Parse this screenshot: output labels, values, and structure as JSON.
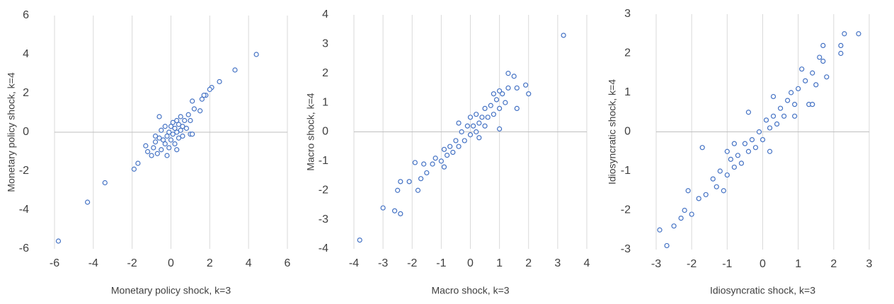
{
  "chart_data": [
    {
      "type": "scatter",
      "color": "#4472c4",
      "grid": "x",
      "xlabel": "Monetary policy shock, k=3",
      "ylabel": "Monetary policy shock, k=4",
      "xlim": [
        -6,
        6
      ],
      "ylim": [
        -6,
        6
      ],
      "xticks": [
        -6,
        -4,
        -2,
        0,
        2,
        4,
        6
      ],
      "yticks": [
        -6,
        -4,
        -2,
        0,
        2,
        4,
        6
      ],
      "x": [
        4.4,
        3.3,
        2.5,
        2.1,
        2.0,
        1.8,
        1.7,
        1.6,
        1.1,
        1.5,
        -5.8,
        -4.3,
        -3.4,
        -1.9,
        -1.7,
        1.0,
        1.1,
        -1.2,
        -1.0,
        -0.9,
        -0.8,
        -0.7,
        -0.6,
        -0.5,
        -0.5,
        -0.4,
        -0.3,
        -0.3,
        -0.2,
        -0.1,
        -0.1,
        0.0,
        0.0,
        0.1,
        0.1,
        0.2,
        0.2,
        0.3,
        0.3,
        0.4,
        0.4,
        0.5,
        0.5,
        0.6,
        0.7,
        0.8,
        0.9,
        1.0,
        -0.6,
        -1.3,
        0.6,
        -0.8,
        1.2,
        -0.2,
        0.3
      ],
      "values": [
        4.0,
        3.2,
        2.6,
        2.3,
        2.2,
        1.9,
        1.9,
        1.7,
        1.6,
        1.1,
        -5.6,
        -3.6,
        -2.6,
        -1.9,
        -1.6,
        -0.1,
        -0.1,
        -1.0,
        -1.2,
        -0.8,
        -0.5,
        -1.1,
        -0.3,
        -0.9,
        0.1,
        -0.4,
        -0.6,
        0.3,
        -0.2,
        -0.8,
        0.0,
        -0.4,
        0.3,
        -0.1,
        0.5,
        -0.6,
        0.2,
        0.0,
        0.6,
        -0.3,
        0.4,
        0.1,
        0.8,
        0.3,
        0.6,
        0.2,
        0.9,
        0.6,
        0.8,
        -0.7,
        -0.2,
        -0.2,
        1.2,
        -1.2,
        -0.9
      ]
    },
    {
      "type": "scatter",
      "color": "#4472c4",
      "grid": "x",
      "xlabel": "Macro shock, k=3",
      "ylabel": "Macro shock, k=4",
      "xlim": [
        -4,
        4
      ],
      "ylim": [
        -4,
        4
      ],
      "xticks": [
        -4,
        -3,
        -2,
        -1,
        0,
        1,
        2,
        3,
        4
      ],
      "yticks": [
        -4,
        -3,
        -2,
        -1,
        0,
        1,
        2,
        3,
        4
      ],
      "x": [
        3.2,
        -3.8,
        -3.0,
        -2.6,
        -2.4,
        -2.5,
        -2.4,
        -2.1,
        -1.9,
        -1.8,
        1.3,
        1.5,
        1.6,
        1.9,
        2.0,
        1.6,
        1.0,
        -1.7,
        -1.5,
        -1.3,
        -1.2,
        -1.0,
        -0.9,
        -0.8,
        -0.7,
        -0.6,
        -0.5,
        -0.4,
        -0.3,
        -0.2,
        -0.1,
        0.0,
        0.0,
        0.1,
        0.2,
        0.2,
        0.3,
        0.4,
        0.5,
        0.5,
        0.6,
        0.7,
        0.8,
        0.9,
        1.0,
        1.1,
        1.2,
        1.3,
        0.8,
        -0.9,
        -1.6,
        0.3,
        -0.4,
        1.0
      ],
      "values": [
        3.3,
        -3.7,
        -2.6,
        -2.7,
        -2.8,
        -2.0,
        -1.7,
        -1.7,
        -1.05,
        -2.0,
        2.0,
        1.9,
        1.5,
        1.6,
        1.3,
        0.8,
        0.1,
        -1.6,
        -1.4,
        -1.1,
        -0.9,
        -1.0,
        -0.6,
        -0.8,
        -0.5,
        -0.7,
        -0.3,
        -0.5,
        0.0,
        -0.3,
        0.2,
        -0.1,
        0.5,
        0.2,
        0.0,
        0.6,
        0.3,
        0.5,
        0.2,
        0.8,
        0.5,
        0.9,
        0.6,
        1.1,
        0.8,
        1.3,
        1.0,
        1.5,
        1.3,
        -1.2,
        -1.1,
        -0.2,
        0.3,
        1.4
      ]
    },
    {
      "type": "scatter",
      "color": "#4472c4",
      "grid": "x",
      "xlabel": "Idiosyncratic shock, k=3",
      "ylabel": "Idiosyncratic shock, k=4",
      "xlim": [
        -3,
        3
      ],
      "ylim": [
        -3,
        3
      ],
      "xticks": [
        -3,
        -2,
        -1,
        0,
        1,
        2,
        3
      ],
      "yticks": [
        -3,
        -2,
        -1,
        0,
        1,
        2,
        3
      ],
      "x": [
        2.3,
        2.7,
        2.2,
        1.7,
        2.2,
        -2.9,
        -2.7,
        -2.5,
        -2.3,
        -2.2,
        -2.0,
        -2.1,
        -1.6,
        -1.8,
        -1.7,
        -1.1,
        1.3,
        1.4,
        1.6,
        -1.4,
        -1.3,
        -1.2,
        -1.0,
        -0.9,
        -0.8,
        -0.7,
        -0.6,
        -0.5,
        -0.4,
        -0.3,
        -0.2,
        -0.1,
        0.0,
        0.1,
        0.2,
        0.3,
        0.3,
        0.4,
        0.5,
        0.6,
        0.7,
        0.8,
        0.9,
        1.0,
        1.1,
        1.2,
        1.4,
        1.5,
        1.7,
        1.8,
        -0.8,
        -0.4,
        0.2,
        0.9,
        -1.0
      ],
      "values": [
        2.5,
        2.5,
        2.2,
        2.2,
        2.0,
        -2.5,
        -2.9,
        -2.4,
        -2.2,
        -2.0,
        -2.1,
        -1.5,
        -1.6,
        -1.7,
        -0.4,
        -1.5,
        0.7,
        0.7,
        1.9,
        -1.2,
        -1.4,
        -1.0,
        -1.1,
        -0.7,
        -0.9,
        -0.6,
        -0.8,
        -0.3,
        -0.5,
        -0.2,
        -0.4,
        0.0,
        -0.2,
        0.3,
        0.1,
        0.4,
        0.9,
        0.2,
        0.6,
        0.4,
        0.8,
        1.0,
        0.7,
        1.1,
        1.6,
        1.3,
        1.5,
        1.2,
        1.8,
        1.4,
        -0.3,
        0.5,
        -0.5,
        0.4,
        -0.5
      ]
    }
  ]
}
